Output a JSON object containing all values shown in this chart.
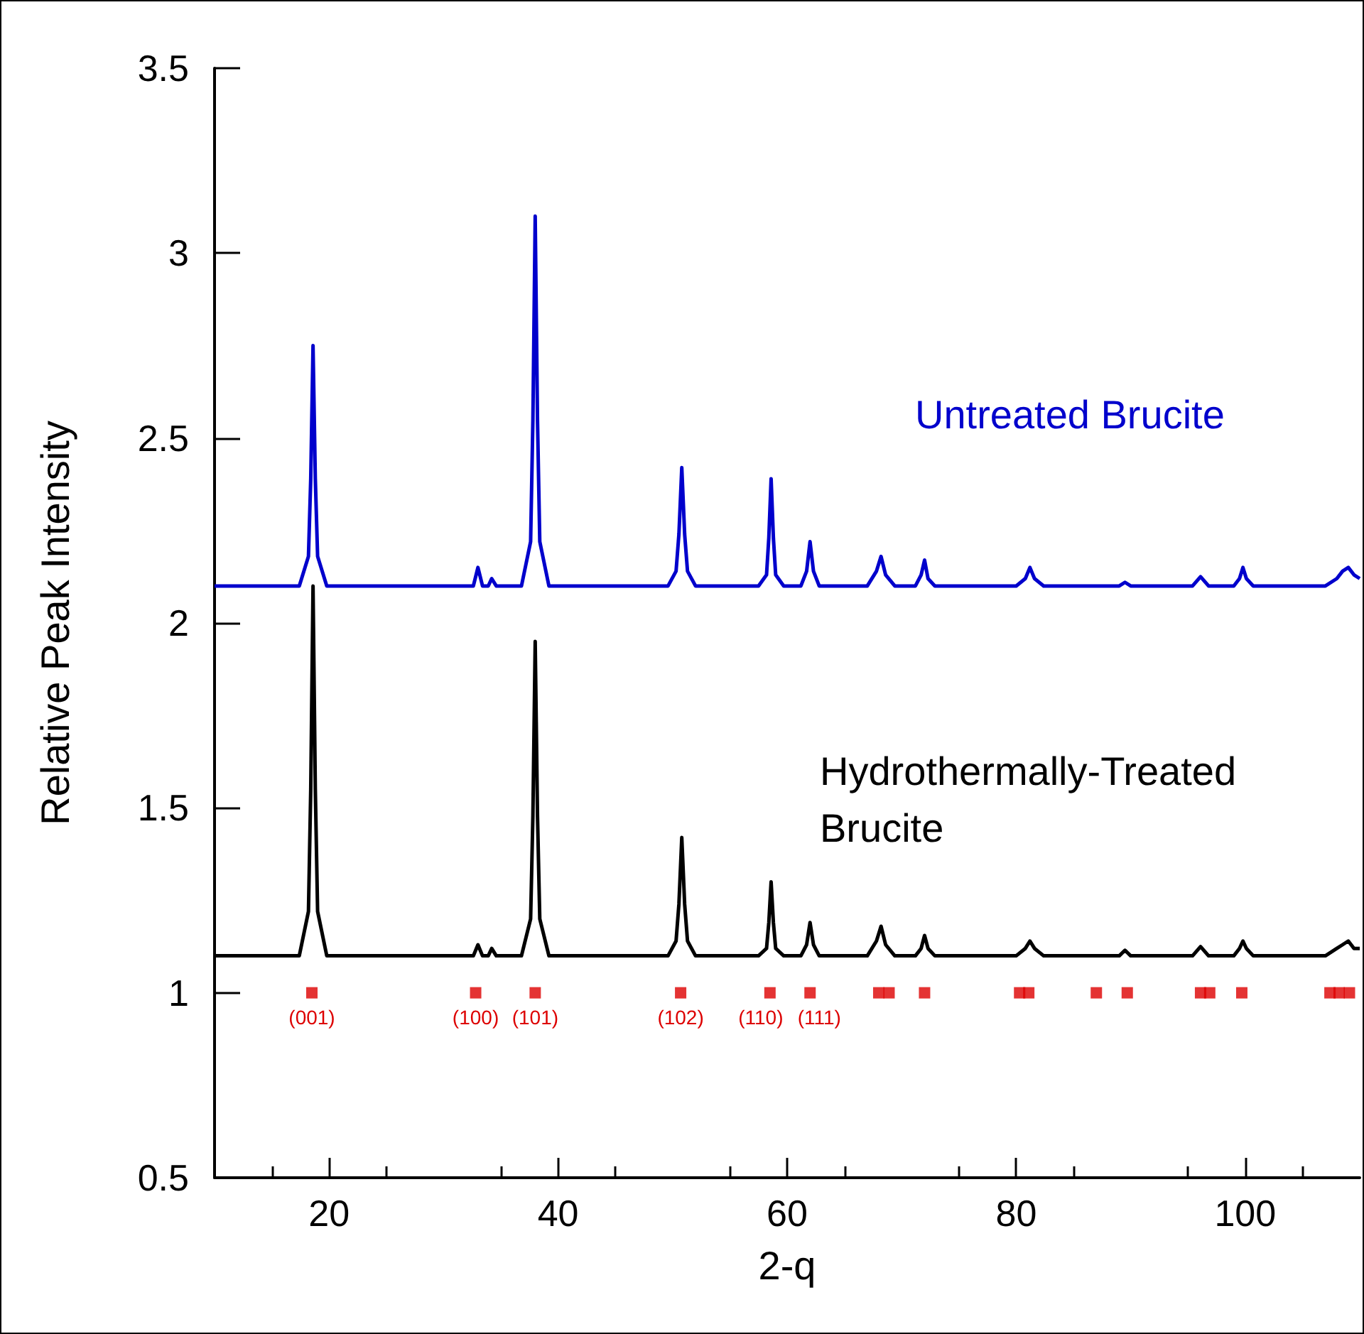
{
  "chart_data": {
    "type": "line",
    "xlabel": "2-q",
    "ylabel": "Relative Peak Intensity",
    "x": [
      10,
      17.4,
      18.2,
      18.4,
      18.6,
      18.8,
      19.0,
      19.8,
      32.6,
      33.0,
      33.4,
      33.9,
      34.2,
      34.6,
      36.8,
      37.6,
      37.8,
      38.0,
      38.2,
      38.4,
      39.2,
      49.6,
      50.3,
      50.55,
      50.8,
      51.05,
      51.3,
      52.0,
      57.5,
      58.2,
      58.4,
      58.6,
      58.8,
      59.0,
      59.7,
      61.2,
      61.7,
      62.0,
      62.3,
      62.8,
      67.0,
      67.8,
      68.2,
      68.6,
      69.4,
      71.2,
      71.7,
      72.0,
      72.3,
      72.9,
      80.0,
      80.8,
      81.2,
      81.6,
      82.4,
      89.0,
      89.5,
      90.0,
      95.4,
      96.1,
      96.8,
      99.0,
      99.5,
      99.8,
      100.1,
      100.7,
      107.0,
      108.0,
      108.5,
      109.0,
      109.5,
      110
    ],
    "xlim": [
      10,
      110
    ],
    "xticks": [
      20,
      40,
      60,
      80,
      100
    ],
    "ylim": [
      0.5,
      3.5
    ],
    "yticks": [
      0.5,
      1,
      1.5,
      2,
      2.5,
      3,
      3.5
    ],
    "line_style": "solid",
    "series": [
      {
        "name": "Untreated Brucite",
        "color": "#0000cc",
        "values": [
          2.1,
          2.1,
          2.18,
          2.39,
          2.75,
          2.39,
          2.18,
          2.1,
          2.1,
          2.15,
          2.1,
          2.1,
          2.12,
          2.1,
          2.1,
          2.22,
          2.55,
          3.1,
          2.55,
          2.22,
          2.1,
          2.1,
          2.14,
          2.24,
          2.42,
          2.24,
          2.14,
          2.1,
          2.1,
          2.13,
          2.23,
          2.39,
          2.23,
          2.13,
          2.1,
          2.1,
          2.14,
          2.22,
          2.14,
          2.1,
          2.1,
          2.14,
          2.18,
          2.13,
          2.1,
          2.1,
          2.13,
          2.17,
          2.12,
          2.1,
          2.1,
          2.12,
          2.15,
          2.12,
          2.1,
          2.1,
          2.11,
          2.1,
          2.1,
          2.125,
          2.1,
          2.1,
          2.12,
          2.15,
          2.12,
          2.1,
          2.1,
          2.12,
          2.14,
          2.15,
          2.13,
          2.12
        ]
      },
      {
        "name": "Hydrothermally-Treated Brucite",
        "color": "#000000",
        "values": [
          1.1,
          1.1,
          1.22,
          1.55,
          2.1,
          1.55,
          1.22,
          1.1,
          1.1,
          1.13,
          1.1,
          1.1,
          1.12,
          1.1,
          1.1,
          1.2,
          1.48,
          1.95,
          1.48,
          1.2,
          1.1,
          1.1,
          1.14,
          1.24,
          1.42,
          1.24,
          1.14,
          1.1,
          1.1,
          1.12,
          1.19,
          1.3,
          1.19,
          1.12,
          1.1,
          1.1,
          1.13,
          1.19,
          1.13,
          1.1,
          1.1,
          1.14,
          1.18,
          1.13,
          1.1,
          1.1,
          1.12,
          1.155,
          1.12,
          1.1,
          1.1,
          1.12,
          1.14,
          1.12,
          1.1,
          1.1,
          1.115,
          1.1,
          1.1,
          1.125,
          1.1,
          1.1,
          1.12,
          1.14,
          1.12,
          1.1,
          1.1,
          1.12,
          1.13,
          1.14,
          1.12,
          1.12
        ]
      },
      {
        "type": "scatter",
        "marker": "square",
        "color": "#dd0000",
        "x": [
          18.5,
          32.8,
          38.0,
          50.7,
          58.5,
          62.0,
          68.0,
          68.9,
          72.0,
          80.3,
          81.1,
          87.0,
          89.7,
          96.1,
          96.9,
          99.7,
          107.4,
          108.2,
          109.1
        ],
        "values": [
          1,
          1,
          1,
          1,
          1,
          1,
          1,
          1,
          1,
          1,
          1,
          1,
          1,
          1,
          1,
          1,
          1,
          1,
          1
        ]
      }
    ],
    "annotations": [
      {
        "text": "(001)",
        "x": 18.5,
        "y": 1
      },
      {
        "text": "(100)",
        "x": 32.8,
        "y": 1
      },
      {
        "text": "(101)",
        "x": 38.0,
        "y": 1
      },
      {
        "text": "(102)",
        "x": 50.7,
        "y": 1
      },
      {
        "text": "(110)",
        "x": 58.5,
        "y": 1
      },
      {
        "text": "(111)",
        "x": 62.0,
        "y": 1
      }
    ]
  }
}
